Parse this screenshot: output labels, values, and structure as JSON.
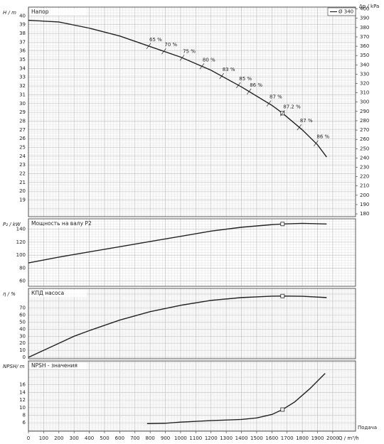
{
  "chart_data": [
    {
      "type": "line",
      "title": "Напор",
      "ylabel": "H / m",
      "y2label": "Δp / kPa",
      "x": [
        0,
        200,
        400,
        600,
        800,
        1000,
        1200,
        1400,
        1600,
        1670,
        1800,
        1900,
        1960
      ],
      "series": [
        {
          "name": "Ø 340",
          "color": "#222222",
          "values": [
            39.5,
            39.3,
            38.6,
            37.7,
            36.5,
            35.3,
            33.8,
            31.9,
            29.8,
            28.9,
            27.0,
            25.3,
            23.9
          ]
        }
      ],
      "annotations": [
        {
          "label": "65 %",
          "x": 790
        },
        {
          "label": "70 %",
          "x": 890
        },
        {
          "label": "75 %",
          "x": 1010
        },
        {
          "label": "80 %",
          "x": 1140
        },
        {
          "label": "83 %",
          "x": 1270
        },
        {
          "label": "85 %",
          "x": 1380
        },
        {
          "label": "86 %",
          "x": 1450
        },
        {
          "label": "87 %",
          "x": 1580
        },
        {
          "label": "87.2 %",
          "x": 1670
        },
        {
          "label": "87 %",
          "x": 1780
        },
        {
          "label": "86 %",
          "x": 1890
        }
      ],
      "operating_point_x": 1670,
      "xlim": [
        0,
        2150
      ],
      "ylim": [
        17.1,
        41
      ],
      "yticks": [
        19,
        20,
        21,
        22,
        23,
        24,
        25,
        26,
        27,
        28,
        29,
        30,
        31,
        32,
        33,
        34,
        35,
        36,
        37,
        38,
        39,
        40
      ],
      "y2lim": [
        177,
        402
      ],
      "y2ticks": [
        180,
        190,
        200,
        210,
        220,
        230,
        240,
        250,
        260,
        270,
        280,
        290,
        300,
        310,
        320,
        330,
        340,
        350,
        360,
        370,
        380,
        390,
        400
      ],
      "grid": true,
      "legend": "upper right"
    },
    {
      "type": "line",
      "title": "Мощность на валу P2",
      "ylabel": "P₂ / kW",
      "x": [
        0,
        200,
        400,
        600,
        800,
        1000,
        1200,
        1400,
        1600,
        1670,
        1800,
        1960
      ],
      "series": [
        {
          "color": "#222222",
          "values": [
            88,
            97,
            105,
            113,
            121,
            129,
            137,
            143,
            147,
            148,
            149,
            148
          ]
        }
      ],
      "operating_point_x": 1670,
      "xlim": [
        0,
        2150
      ],
      "ylim": [
        52,
        156
      ],
      "yticks": [
        60,
        80,
        100,
        120,
        140
      ],
      "grid": true
    },
    {
      "type": "line",
      "title": "КПД насоса",
      "ylabel": "η / %",
      "x": [
        0,
        100,
        200,
        300,
        400,
        600,
        800,
        1000,
        1200,
        1400,
        1600,
        1670,
        1800,
        1960
      ],
      "series": [
        {
          "color": "#222222",
          "values": [
            0,
            10,
            20,
            30,
            38,
            53,
            65,
            74,
            81,
            85,
            87,
            87.2,
            86.8,
            85
          ]
        }
      ],
      "operating_point_x": 1670,
      "xlim": [
        0,
        2150
      ],
      "ylim": [
        -2,
        98
      ],
      "yticks": [
        0,
        10,
        20,
        30,
        40,
        50,
        60,
        70
      ],
      "grid": true
    },
    {
      "type": "line",
      "title": "NPSH - значения",
      "ylabel": "NPSH/ m",
      "xlabel": "Q / m³/h",
      "xcaption": "Подача",
      "x": [
        780,
        900,
        1000,
        1200,
        1400,
        1500,
        1600,
        1670,
        1750,
        1850,
        1900,
        1950
      ],
      "series": [
        {
          "color": "#222222",
          "values": [
            5.8,
            5.9,
            6.2,
            6.6,
            6.9,
            7.3,
            8.2,
            9.5,
            11.5,
            15,
            17,
            19
          ]
        }
      ],
      "operating_point_x": 1670,
      "xlim": [
        0,
        2150
      ],
      "ylim": [
        3.8,
        22.3
      ],
      "yticks": [
        6,
        8,
        10,
        12,
        14,
        16
      ],
      "xticks": [
        0,
        100,
        200,
        300,
        400,
        500,
        600,
        700,
        800,
        900,
        1000,
        1100,
        1200,
        1300,
        1400,
        1500,
        1600,
        1700,
        1800,
        1900,
        2000
      ],
      "grid": true
    }
  ]
}
